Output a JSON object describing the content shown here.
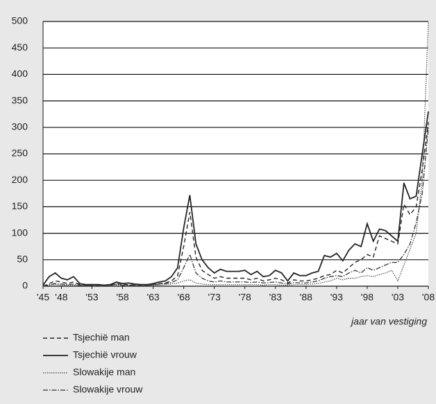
{
  "chart_data": {
    "type": "line",
    "x_label": "jaar van vestiging",
    "categories": [
      "'45",
      null,
      null,
      "'48",
      null,
      null,
      null,
      null,
      "'53",
      null,
      null,
      null,
      null,
      "'58",
      null,
      null,
      null,
      null,
      "'63",
      null,
      null,
      null,
      null,
      "'68",
      null,
      null,
      null,
      null,
      "'73",
      null,
      null,
      null,
      null,
      "'78",
      null,
      null,
      null,
      null,
      "'83",
      null,
      null,
      null,
      null,
      "'88",
      null,
      null,
      null,
      null,
      "'93",
      null,
      null,
      null,
      null,
      "'98",
      null,
      null,
      null,
      null,
      "'03",
      null,
      null,
      null,
      null,
      "'08"
    ],
    "ylim": [
      0,
      500
    ],
    "yticks": [
      0,
      50,
      100,
      150,
      200,
      250,
      300,
      350,
      400,
      450,
      500
    ],
    "grid": true,
    "series": [
      {
        "name": "Tsjechië man",
        "color": "#222222",
        "dash": "6 4",
        "width": 1.4,
        "values": [
          0,
          5,
          10,
          8,
          5,
          8,
          3,
          2,
          2,
          2,
          2,
          2,
          5,
          3,
          3,
          2,
          2,
          2,
          3,
          5,
          6,
          10,
          20,
          75,
          140,
          55,
          30,
          22,
          15,
          18,
          15,
          15,
          15,
          15,
          12,
          15,
          10,
          12,
          15,
          12,
          6,
          12,
          10,
          10,
          12,
          15,
          20,
          22,
          30,
          25,
          35,
          45,
          50,
          60,
          55,
          95,
          90,
          85,
          80,
          155,
          135,
          150,
          220,
          310
        ]
      },
      {
        "name": "Tsjechië vrouw",
        "color": "#222222",
        "dash": "none",
        "width": 1.8,
        "values": [
          2,
          18,
          25,
          15,
          12,
          18,
          5,
          3,
          3,
          3,
          2,
          3,
          8,
          5,
          6,
          4,
          3,
          3,
          5,
          8,
          10,
          18,
          35,
          110,
          172,
          80,
          50,
          35,
          25,
          32,
          28,
          28,
          28,
          30,
          22,
          28,
          18,
          20,
          30,
          25,
          10,
          25,
          20,
          20,
          25,
          28,
          58,
          55,
          62,
          48,
          68,
          80,
          75,
          118,
          85,
          108,
          105,
          95,
          85,
          195,
          165,
          170,
          250,
          330
        ]
      },
      {
        "name": "Slowakije man",
        "color": "#444444",
        "dash": "1.5 1.5",
        "width": 1.2,
        "values": [
          0,
          2,
          3,
          2,
          2,
          2,
          1,
          1,
          1,
          1,
          1,
          1,
          2,
          1,
          1,
          1,
          1,
          1,
          2,
          2,
          3,
          4,
          6,
          10,
          12,
          6,
          4,
          3,
          3,
          3,
          3,
          3,
          3,
          3,
          3,
          3,
          2,
          3,
          3,
          2,
          2,
          3,
          3,
          3,
          4,
          5,
          8,
          10,
          15,
          12,
          15,
          15,
          18,
          20,
          18,
          22,
          25,
          30,
          10,
          40,
          70,
          100,
          200,
          500
        ]
      },
      {
        "name": "Slowakije vrouw",
        "color": "#333333",
        "dash": "7 2 1.5 2",
        "width": 1.3,
        "values": [
          0,
          3,
          5,
          4,
          3,
          4,
          2,
          2,
          2,
          2,
          2,
          2,
          4,
          2,
          2,
          2,
          2,
          2,
          3,
          4,
          5,
          7,
          12,
          35,
          60,
          25,
          15,
          10,
          8,
          10,
          8,
          8,
          8,
          8,
          7,
          8,
          6,
          7,
          8,
          6,
          4,
          7,
          6,
          6,
          8,
          10,
          15,
          18,
          20,
          18,
          25,
          30,
          25,
          35,
          30,
          35,
          40,
          45,
          45,
          60,
          80,
          120,
          175,
          300
        ]
      }
    ]
  }
}
